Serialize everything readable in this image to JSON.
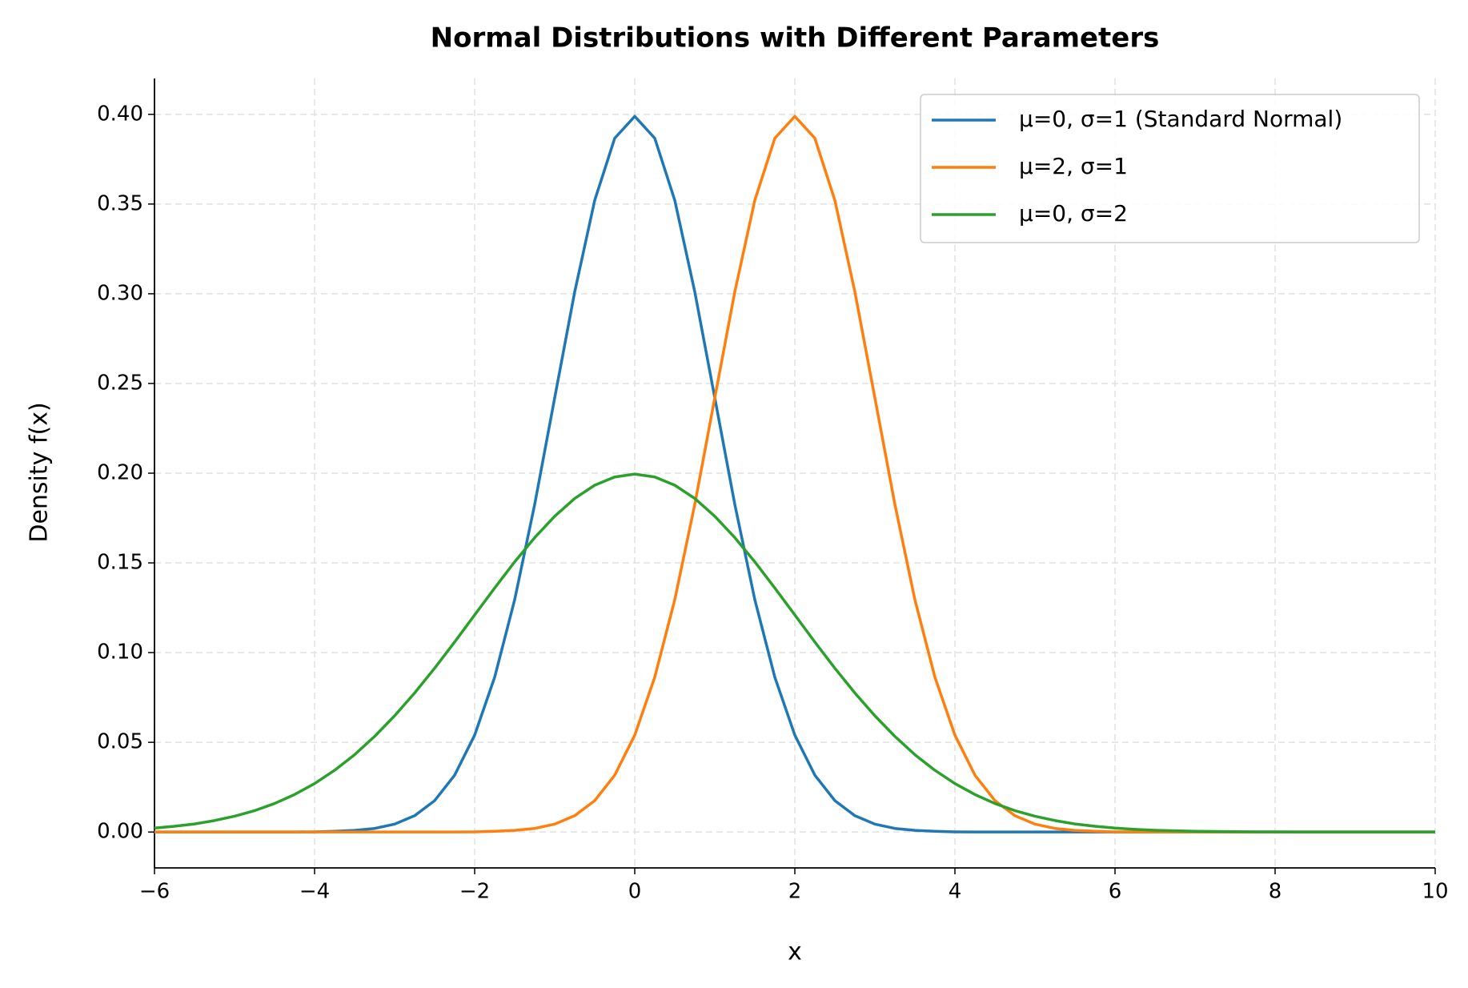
{
  "chart_data": {
    "type": "line",
    "title": "Normal Distributions with Different Parameters",
    "x_label": "x",
    "y_label": "Density f(x)",
    "x": [
      -6,
      -5.75,
      -5.5,
      -5.25,
      -5,
      -4.75,
      -4.5,
      -4.25,
      -4,
      -3.75,
      -3.5,
      -3.25,
      -3,
      -2.75,
      -2.5,
      -2.25,
      -2,
      -1.75,
      -1.5,
      -1.25,
      -1,
      -0.75,
      -0.5,
      -0.25,
      0,
      0.25,
      0.5,
      0.75,
      1,
      1.25,
      1.5,
      1.75,
      2,
      2.25,
      2.5,
      2.75,
      3,
      3.25,
      3.5,
      3.75,
      4,
      4.25,
      4.5,
      4.75,
      5,
      5.25,
      5.5,
      5.75,
      6,
      6.25,
      6.5,
      6.75,
      7,
      7.25,
      7.5,
      7.75,
      8,
      8.25,
      8.5,
      8.75,
      9,
      9.25,
      9.5,
      9.75,
      10
    ],
    "series": [
      {
        "name": "μ=0, σ=1 (Standard Normal)",
        "color": "#1f77b4",
        "values": [
          0,
          0,
          0,
          0,
          0,
          0,
          0,
          0,
          0.0001,
          0.0004,
          0.0009,
          0.002,
          0.0044,
          0.0091,
          0.0175,
          0.0317,
          0.054,
          0.0863,
          0.1295,
          0.1826,
          0.242,
          0.3011,
          0.3521,
          0.3867,
          0.3989,
          0.3867,
          0.3521,
          0.3011,
          0.242,
          0.1826,
          0.1295,
          0.0863,
          0.054,
          0.0317,
          0.0175,
          0.0091,
          0.0044,
          0.002,
          0.0009,
          0.0004,
          0.0001,
          0,
          0,
          0,
          0,
          0,
          0,
          0,
          0,
          0,
          0,
          0,
          0,
          0,
          0,
          0,
          0,
          0,
          0,
          0,
          0,
          0,
          0,
          0,
          0
        ]
      },
      {
        "name": "μ=2, σ=1",
        "color": "#ff7f0e",
        "values": [
          0,
          0,
          0,
          0,
          0,
          0,
          0,
          0,
          0,
          0,
          0,
          0,
          0,
          0,
          0,
          0,
          0.0001,
          0.0004,
          0.0009,
          0.002,
          0.0044,
          0.0091,
          0.0175,
          0.0317,
          0.054,
          0.0863,
          0.1295,
          0.1826,
          0.242,
          0.3011,
          0.3521,
          0.3867,
          0.3989,
          0.3867,
          0.3521,
          0.3011,
          0.242,
          0.1826,
          0.1295,
          0.0863,
          0.054,
          0.0317,
          0.0175,
          0.0091,
          0.0044,
          0.002,
          0.0009,
          0.0004,
          0.0001,
          0,
          0,
          0,
          0,
          0,
          0,
          0,
          0,
          0,
          0,
          0,
          0,
          0,
          0,
          0,
          0
        ]
      },
      {
        "name": "μ=0, σ=2",
        "color": "#2ca02c",
        "values": [
          0.0022,
          0.0032,
          0.0045,
          0.0064,
          0.0088,
          0.0119,
          0.0159,
          0.0209,
          0.027,
          0.0344,
          0.0431,
          0.0533,
          0.0648,
          0.0775,
          0.0913,
          0.1059,
          0.121,
          0.136,
          0.1506,
          0.1641,
          0.176,
          0.1859,
          0.1933,
          0.1979,
          0.1995,
          0.1979,
          0.1933,
          0.1859,
          0.176,
          0.1641,
          0.1506,
          0.136,
          0.121,
          0.1059,
          0.0913,
          0.0775,
          0.0648,
          0.0533,
          0.0431,
          0.0344,
          0.027,
          0.0209,
          0.0159,
          0.0119,
          0.0088,
          0.0064,
          0.0045,
          0.0032,
          0.0022,
          0.0015,
          0.001,
          0.0007,
          0.0004,
          0.0003,
          0.0002,
          0.0001,
          0.0001,
          0,
          0,
          0,
          0,
          0,
          0,
          0,
          0
        ]
      }
    ],
    "xlim": [
      -6,
      10
    ],
    "xticks": [
      {
        "value": -6,
        "label": "−6"
      },
      {
        "value": -4,
        "label": "−4"
      },
      {
        "value": -2,
        "label": "−2"
      },
      0,
      2,
      4,
      6,
      8,
      10
    ],
    "ylim": [
      -0.02,
      0.42
    ],
    "yticks": [
      {
        "value": 0,
        "label": "0.00"
      },
      {
        "value": 0.05,
        "label": "0.05"
      },
      {
        "value": 0.1,
        "label": "0.10"
      },
      {
        "value": 0.15,
        "label": "0.15"
      },
      {
        "value": 0.2,
        "label": "0.20"
      },
      {
        "value": 0.25,
        "label": "0.25"
      },
      {
        "value": 0.3,
        "label": "0.30"
      },
      {
        "value": 0.35,
        "label": "0.35"
      },
      {
        "value": 0.4,
        "label": "0.40"
      }
    ],
    "grid": true,
    "legend": "upper right"
  }
}
